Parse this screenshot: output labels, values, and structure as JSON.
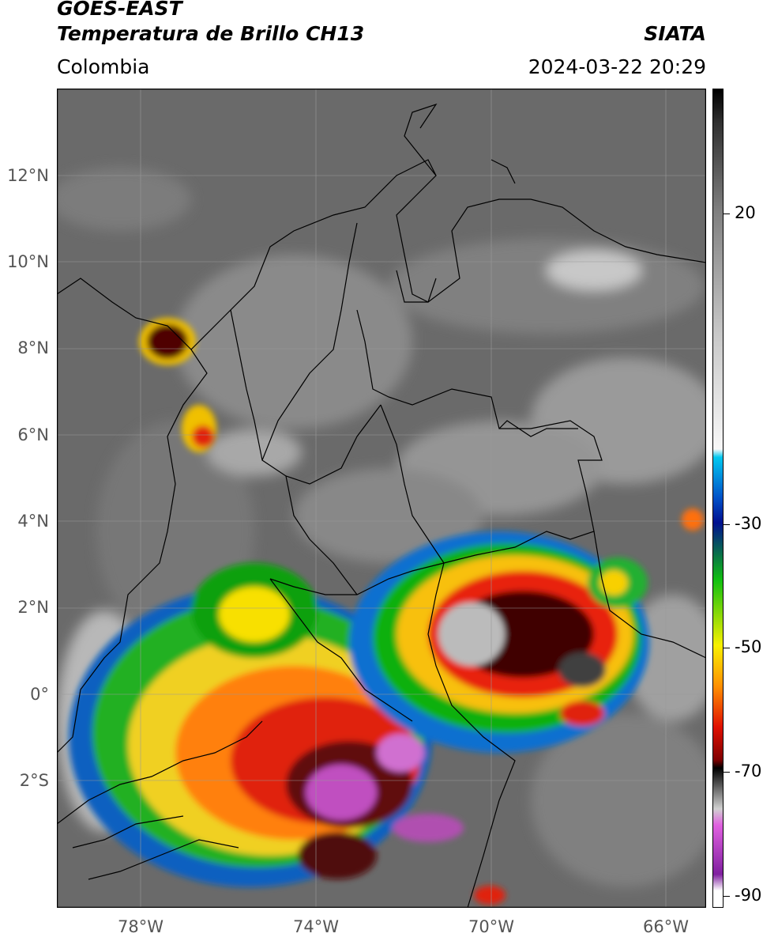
{
  "header": {
    "satellite": "GOES-EAST",
    "product": "Temperatura de Brillo CH13",
    "region": "Colombia",
    "agency": "SIATA",
    "datetime": "2024-03-22 20:29"
  },
  "map": {
    "lat_labels": [
      "12°N",
      "10°N",
      "8°N",
      "6°N",
      "4°N",
      "2°N",
      "0°",
      "2°S"
    ],
    "lon_labels": [
      "78°W",
      "74°W",
      "70°W",
      "66°W"
    ]
  },
  "colorbar": {
    "tick_labels": [
      "20",
      "-30",
      "-50",
      "-70",
      "-90"
    ],
    "colors": {
      "cyan": "#00c8f0",
      "blue": "#0050c8",
      "navy": "#001090",
      "green": "#10c010",
      "yellow": "#f8f000",
      "orange": "#ff9000",
      "red": "#e01000",
      "darkred": "#800000",
      "magenta": "#e060e0",
      "purple": "#8020a0"
    }
  }
}
